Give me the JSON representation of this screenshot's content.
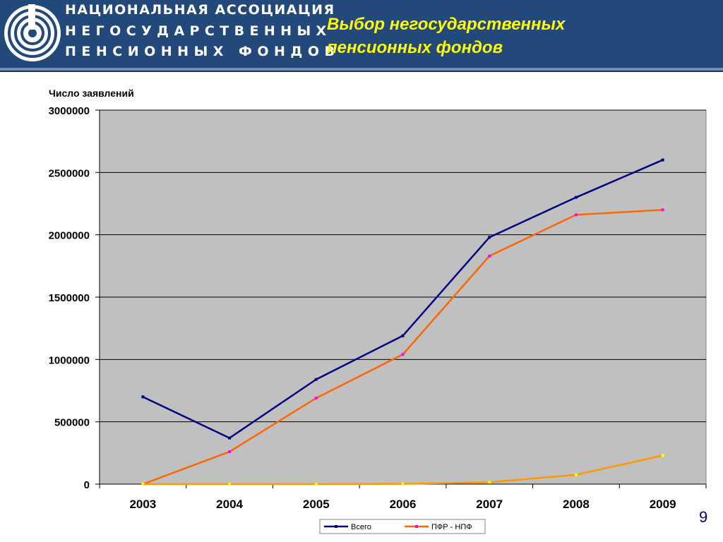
{
  "header": {
    "org_lines": [
      "НАЦИОНАЛЬНАЯ АССОЦИАЦИЯ",
      "НЕГОСУДАРСТВЕННЫХ",
      "ПЕНСИОННЫХ ФОНДОВ"
    ],
    "title_line1": "Выбор негосударственных",
    "title_line2": "пенсионных фондов"
  },
  "page_number": "9",
  "chart_data": {
    "type": "line",
    "ylabel": "Число заявлений",
    "categories": [
      "2003",
      "2004",
      "2005",
      "2006",
      "2007",
      "2008",
      "2009"
    ],
    "ylim": [
      0,
      3000000
    ],
    "yticks": [
      0,
      500000,
      1000000,
      1500000,
      2000000,
      2500000,
      3000000
    ],
    "grid": true,
    "legend_position": "bottom",
    "series": [
      {
        "name": "Всего",
        "color": "#000080",
        "marker_color": "#000080",
        "values": [
          700000,
          370000,
          840000,
          1190000,
          1980000,
          2300000,
          2600000
        ]
      },
      {
        "name": "ПФР - НПФ",
        "color": "#ff6600",
        "marker_color": "#ff00ff",
        "values": [
          0,
          260000,
          690000,
          1040000,
          1830000,
          2160000,
          2200000
        ]
      },
      {
        "name": "",
        "color": "#ff9900",
        "marker_color": "#ffff00",
        "values": [
          0,
          0,
          0,
          2000,
          15000,
          75000,
          230000
        ]
      }
    ]
  }
}
